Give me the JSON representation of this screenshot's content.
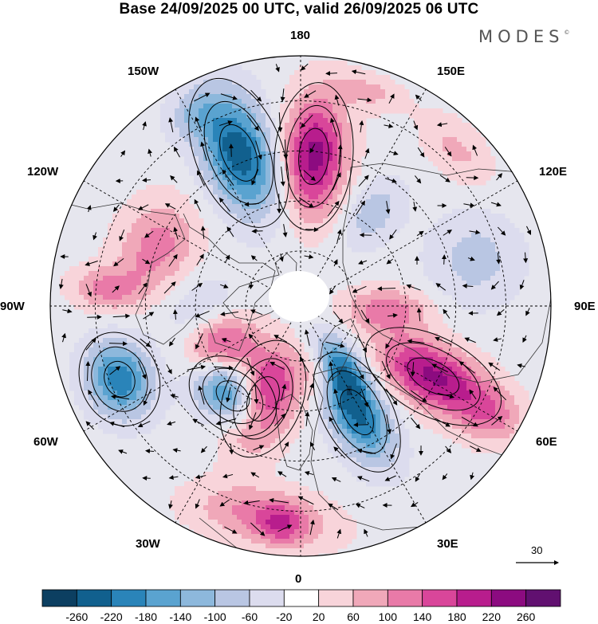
{
  "title": "Base 24/09/2025 00 UTC, valid 26/09/2025 06 UTC",
  "logo": "MODES",
  "logo_mark": "©",
  "longitude_labels": {
    "top": "180",
    "bottom": "0",
    "left": "90W",
    "right": "90E",
    "top_left": "150W",
    "top_right": "150E",
    "upper_left": "120W",
    "upper_right": "120E",
    "lower_left": "60W",
    "lower_right": "60E",
    "bottom_left": "30W",
    "bottom_right": "30E"
  },
  "vector_scale": {
    "value": "30"
  },
  "colorbar": {
    "colors": [
      "#0c3f61",
      "#11608e",
      "#2a84b9",
      "#5aa3d0",
      "#8db8dc",
      "#b9c6e3",
      "#dcdcee",
      "#ffffff",
      "#f8d4da",
      "#f0a8b9",
      "#e97aa8",
      "#d9469a",
      "#b81d8d",
      "#8c0b80",
      "#611070"
    ],
    "labels": [
      "-260",
      "-220",
      "-180",
      "-140",
      "-100",
      "-60",
      "-20",
      "20",
      "60",
      "100",
      "140",
      "180",
      "220",
      "260"
    ]
  },
  "field_blobs": [
    {
      "lon": -158,
      "r": 0.66,
      "value": -250,
      "sx": 0.1,
      "sy": 0.18
    },
    {
      "lon": 175,
      "r": 0.6,
      "value": 240,
      "sx": 0.09,
      "sy": 0.17
    },
    {
      "lon": -112,
      "r": 0.62,
      "value": 120,
      "sx": 0.14,
      "sy": 0.11
    },
    {
      "lon": -95,
      "r": 0.78,
      "value": 110,
      "sx": 0.06,
      "sy": 0.1
    },
    {
      "lon": -65,
      "r": 0.35,
      "value": 170,
      "sx": 0.08,
      "sy": 0.1
    },
    {
      "lon": -68,
      "r": 0.78,
      "value": -210,
      "sx": 0.11,
      "sy": 0.09
    },
    {
      "lon": -37,
      "r": 0.45,
      "value": -240,
      "sx": 0.11,
      "sy": 0.08
    },
    {
      "lon": -22,
      "r": 0.4,
      "value": 250,
      "sx": 0.09,
      "sy": 0.14
    },
    {
      "lon": -10,
      "r": 0.85,
      "value": 120,
      "sx": 0.2,
      "sy": 0.08
    },
    {
      "lon": 28,
      "r": 0.48,
      "value": -230,
      "sx": 0.08,
      "sy": 0.15
    },
    {
      "lon": 32,
      "r": 0.28,
      "value": -160,
      "sx": 0.06,
      "sy": 0.1
    },
    {
      "lon": 15,
      "r": 0.28,
      "value": 90,
      "sx": 0.05,
      "sy": 0.08
    },
    {
      "lon": 62,
      "r": 0.6,
      "value": 230,
      "sx": 0.09,
      "sy": 0.17
    },
    {
      "lon": 88,
      "r": 0.35,
      "value": 120,
      "sx": 0.06,
      "sy": 0.12
    },
    {
      "lon": 105,
      "r": 0.72,
      "value": -80,
      "sx": 0.13,
      "sy": 0.13
    },
    {
      "lon": 142,
      "r": 0.47,
      "value": -90,
      "sx": 0.07,
      "sy": 0.1
    },
    {
      "lon": 135,
      "r": 0.88,
      "value": 70,
      "sx": 0.12,
      "sy": 0.07
    },
    {
      "lon": -150,
      "r": 0.88,
      "value": -60,
      "sx": 0.08,
      "sy": 0.06
    },
    {
      "lon": 162,
      "r": 0.9,
      "value": 70,
      "sx": 0.1,
      "sy": 0.05
    },
    {
      "lon": -88,
      "r": 0.4,
      "value": -60,
      "sx": 0.1,
      "sy": 0.12
    },
    {
      "lon": 60,
      "r": 0.88,
      "value": 90,
      "sx": 0.08,
      "sy": 0.09
    },
    {
      "lon": -5,
      "r": 0.88,
      "value": 90,
      "sx": 0.07,
      "sy": 0.06
    }
  ]
}
